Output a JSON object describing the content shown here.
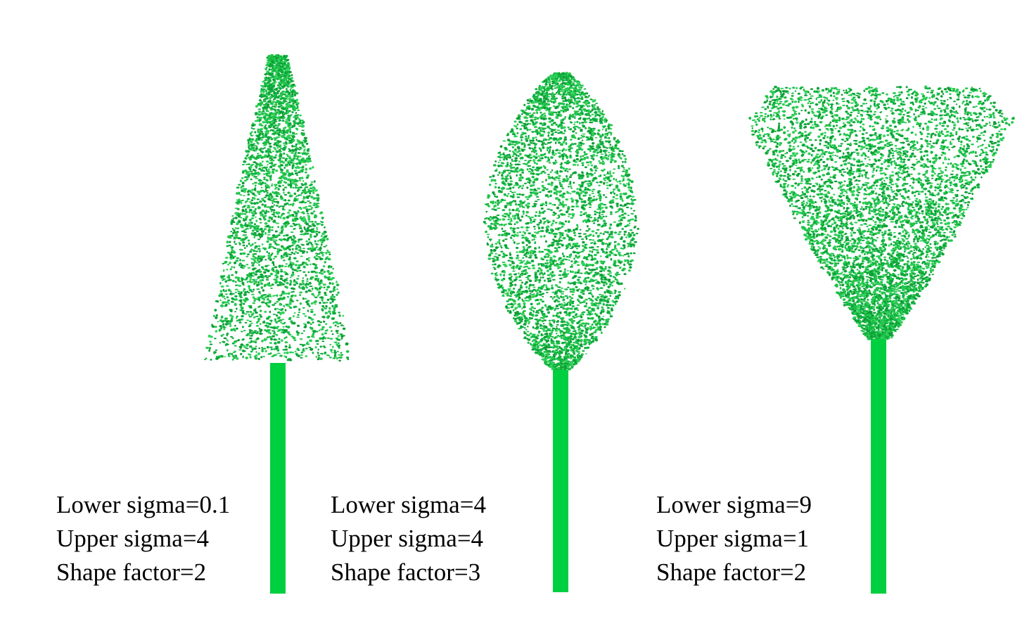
{
  "colors": {
    "trunk": "#00cf40",
    "leaf_light": "#22c84a",
    "leaf_dark": "#0aa83a",
    "text": "#000000",
    "background": "#ffffff"
  },
  "trees": [
    {
      "id": "tree-1",
      "crown_shape": "cone",
      "labels": {
        "lower_sigma": "Lower sigma=0.1",
        "upper_sigma": "Upper sigma=4",
        "shape_factor": "Shape factor=2"
      }
    },
    {
      "id": "tree-2",
      "crown_shape": "ellipsoid",
      "labels": {
        "lower_sigma": "Lower sigma=4",
        "upper_sigma": "Upper sigma=4",
        "shape_factor": "Shape factor=3"
      }
    },
    {
      "id": "tree-3",
      "crown_shape": "inverted-cone",
      "labels": {
        "lower_sigma": "Lower sigma=9",
        "upper_sigma": "Upper sigma=1",
        "shape_factor": "Shape factor=2"
      }
    }
  ]
}
